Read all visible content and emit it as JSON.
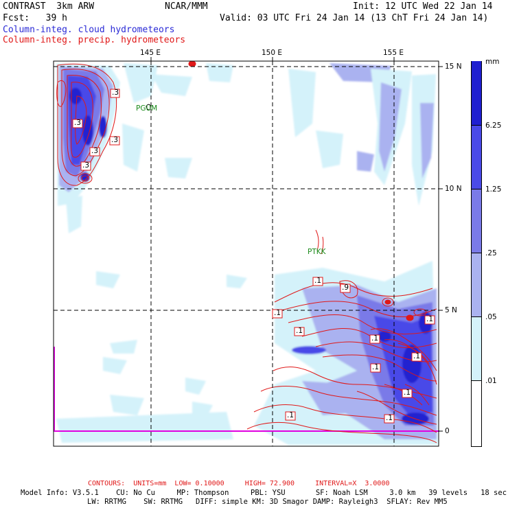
{
  "header": {
    "model": "CONTRAST  3km ARW",
    "org": "NCAR/MMM",
    "init": "Init: 12 UTC Wed 22 Jan 14",
    "fcst": "Fcst:   39 h",
    "valid": "Valid: 03 UTC Fri 24 Jan 14 (13 ChT Fri 24 Jan 14)",
    "field1": "Column-integ. cloud hydrometeors",
    "field2": "Column-integ. precip. hydrometeors"
  },
  "colors": {
    "cloud": "#2a2ad6",
    "precip": "#e01818",
    "station": "#1a8a1a",
    "border": "#e000e0"
  },
  "map": {
    "lon_labels": [
      "145 E",
      "150 E",
      "155 E"
    ],
    "lat_labels": [
      "15 N",
      "10 N",
      "5 N",
      "0"
    ],
    "stations": [
      "PGUM",
      "PTKK"
    ],
    "contour_labels": [
      ".3",
      ".3",
      ".3",
      ".3",
      ".3",
      ".1",
      ".1",
      ".1",
      ".1",
      ".1",
      ".1",
      ".1",
      ".1",
      ".1",
      ".1",
      ".9"
    ]
  },
  "colorbar": {
    "unit": "mm",
    "levels": [
      "6.25",
      "1.25",
      ".25",
      ".05",
      ".01"
    ],
    "colors": [
      "#2020d0",
      "#4a4ae8",
      "#7a7ae8",
      "#aab2f0",
      "#d4f2fa",
      "#ffffff"
    ]
  },
  "footer": {
    "contours": "CONTOURS:  UNITS=mm  LOW= 0.10000     HIGH= 72.900     INTERVAL=X  3.0000",
    "model_info_1": "Model Info: V3.5.1    CU: No Cu     MP: Thompson     PBL: YSU       SF: Noah LSM     3.0 km   39 levels   18 sec",
    "model_info_2": "LW: RRTMG    SW: RRTMG   DIFF: simple KM: 3D Smagor DAMP: Rayleigh3  SFLAY: Rev MM5"
  }
}
